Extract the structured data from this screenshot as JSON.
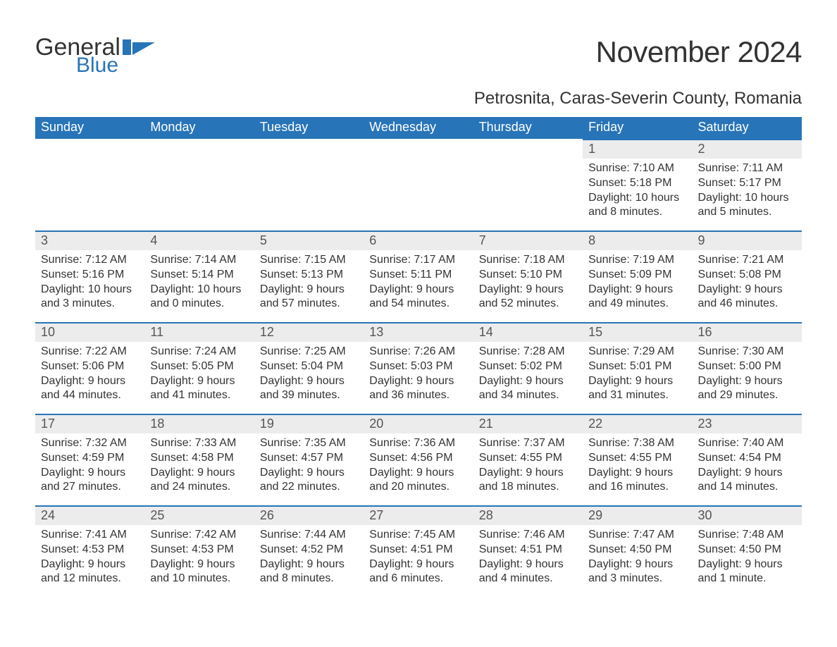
{
  "logo": {
    "word1": "General",
    "word2": "Blue"
  },
  "title": "November 2024",
  "subtitle": "Petrosnita, Caras-Severin County, Romania",
  "colors": {
    "header_bg": "#2874b8",
    "header_text": "#ffffff",
    "daynum_bg": "#ececec",
    "daynum_border": "#2874b8",
    "body_text": "#333333",
    "page_bg": "#ffffff"
  },
  "font_sizes_pt": {
    "title": 32,
    "subtitle": 18,
    "weekday_header": 14,
    "daynum": 14,
    "body": 12
  },
  "weekdays": [
    "Sunday",
    "Monday",
    "Tuesday",
    "Wednesday",
    "Thursday",
    "Friday",
    "Saturday"
  ],
  "labels": {
    "sunrise": "Sunrise",
    "sunset": "Sunset",
    "daylight": "Daylight"
  },
  "weeks": [
    [
      null,
      null,
      null,
      null,
      null,
      {
        "n": "1",
        "sunrise": "7:10 AM",
        "sunset": "5:18 PM",
        "daylight": "10 hours and 8 minutes."
      },
      {
        "n": "2",
        "sunrise": "7:11 AM",
        "sunset": "5:17 PM",
        "daylight": "10 hours and 5 minutes."
      }
    ],
    [
      {
        "n": "3",
        "sunrise": "7:12 AM",
        "sunset": "5:16 PM",
        "daylight": "10 hours and 3 minutes."
      },
      {
        "n": "4",
        "sunrise": "7:14 AM",
        "sunset": "5:14 PM",
        "daylight": "10 hours and 0 minutes."
      },
      {
        "n": "5",
        "sunrise": "7:15 AM",
        "sunset": "5:13 PM",
        "daylight": "9 hours and 57 minutes."
      },
      {
        "n": "6",
        "sunrise": "7:17 AM",
        "sunset": "5:11 PM",
        "daylight": "9 hours and 54 minutes."
      },
      {
        "n": "7",
        "sunrise": "7:18 AM",
        "sunset": "5:10 PM",
        "daylight": "9 hours and 52 minutes."
      },
      {
        "n": "8",
        "sunrise": "7:19 AM",
        "sunset": "5:09 PM",
        "daylight": "9 hours and 49 minutes."
      },
      {
        "n": "9",
        "sunrise": "7:21 AM",
        "sunset": "5:08 PM",
        "daylight": "9 hours and 46 minutes."
      }
    ],
    [
      {
        "n": "10",
        "sunrise": "7:22 AM",
        "sunset": "5:06 PM",
        "daylight": "9 hours and 44 minutes."
      },
      {
        "n": "11",
        "sunrise": "7:24 AM",
        "sunset": "5:05 PM",
        "daylight": "9 hours and 41 minutes."
      },
      {
        "n": "12",
        "sunrise": "7:25 AM",
        "sunset": "5:04 PM",
        "daylight": "9 hours and 39 minutes."
      },
      {
        "n": "13",
        "sunrise": "7:26 AM",
        "sunset": "5:03 PM",
        "daylight": "9 hours and 36 minutes."
      },
      {
        "n": "14",
        "sunrise": "7:28 AM",
        "sunset": "5:02 PM",
        "daylight": "9 hours and 34 minutes."
      },
      {
        "n": "15",
        "sunrise": "7:29 AM",
        "sunset": "5:01 PM",
        "daylight": "9 hours and 31 minutes."
      },
      {
        "n": "16",
        "sunrise": "7:30 AM",
        "sunset": "5:00 PM",
        "daylight": "9 hours and 29 minutes."
      }
    ],
    [
      {
        "n": "17",
        "sunrise": "7:32 AM",
        "sunset": "4:59 PM",
        "daylight": "9 hours and 27 minutes."
      },
      {
        "n": "18",
        "sunrise": "7:33 AM",
        "sunset": "4:58 PM",
        "daylight": "9 hours and 24 minutes."
      },
      {
        "n": "19",
        "sunrise": "7:35 AM",
        "sunset": "4:57 PM",
        "daylight": "9 hours and 22 minutes."
      },
      {
        "n": "20",
        "sunrise": "7:36 AM",
        "sunset": "4:56 PM",
        "daylight": "9 hours and 20 minutes."
      },
      {
        "n": "21",
        "sunrise": "7:37 AM",
        "sunset": "4:55 PM",
        "daylight": "9 hours and 18 minutes."
      },
      {
        "n": "22",
        "sunrise": "7:38 AM",
        "sunset": "4:55 PM",
        "daylight": "9 hours and 16 minutes."
      },
      {
        "n": "23",
        "sunrise": "7:40 AM",
        "sunset": "4:54 PM",
        "daylight": "9 hours and 14 minutes."
      }
    ],
    [
      {
        "n": "24",
        "sunrise": "7:41 AM",
        "sunset": "4:53 PM",
        "daylight": "9 hours and 12 minutes."
      },
      {
        "n": "25",
        "sunrise": "7:42 AM",
        "sunset": "4:53 PM",
        "daylight": "9 hours and 10 minutes."
      },
      {
        "n": "26",
        "sunrise": "7:44 AM",
        "sunset": "4:52 PM",
        "daylight": "9 hours and 8 minutes."
      },
      {
        "n": "27",
        "sunrise": "7:45 AM",
        "sunset": "4:51 PM",
        "daylight": "9 hours and 6 minutes."
      },
      {
        "n": "28",
        "sunrise": "7:46 AM",
        "sunset": "4:51 PM",
        "daylight": "9 hours and 4 minutes."
      },
      {
        "n": "29",
        "sunrise": "7:47 AM",
        "sunset": "4:50 PM",
        "daylight": "9 hours and 3 minutes."
      },
      {
        "n": "30",
        "sunrise": "7:48 AM",
        "sunset": "4:50 PM",
        "daylight": "9 hours and 1 minute."
      }
    ]
  ]
}
